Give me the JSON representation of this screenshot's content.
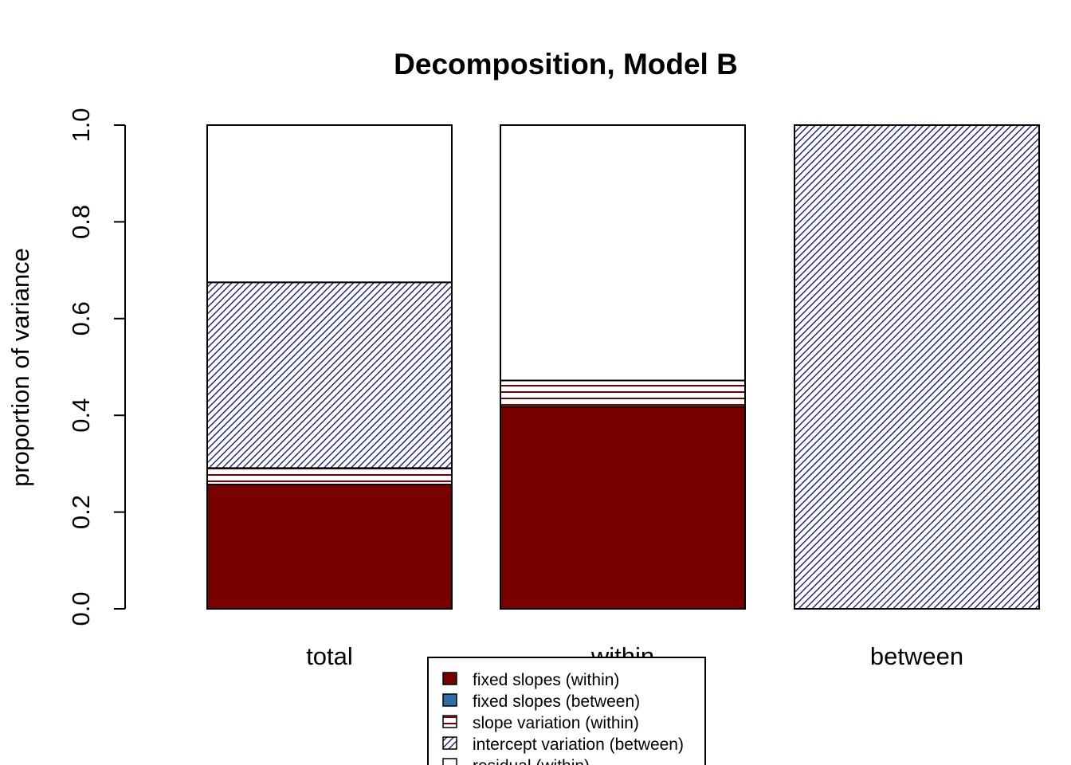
{
  "chart_data": {
    "type": "bar",
    "stacked": true,
    "title": "Decomposition, Model B",
    "ylabel": "proportion of variance",
    "xlabel": "",
    "ylim": [
      0,
      1
    ],
    "yticks": [
      "0.0",
      "0.2",
      "0.4",
      "0.6",
      "0.8",
      "1.0"
    ],
    "categories": [
      "total",
      "within",
      "between"
    ],
    "series": [
      {
        "name": "fixed slopes (within)",
        "values": [
          0.257,
          0.418,
          0.0
        ],
        "color": "#7a0000",
        "fill": "solid"
      },
      {
        "name": "fixed slopes (between)",
        "values": [
          0.0,
          0.0,
          0.0
        ],
        "color": "#2f6da6",
        "fill": "solid"
      },
      {
        "name": "slope variation (within)",
        "values": [
          0.034,
          0.054,
          0.0
        ],
        "color": "#7a0000",
        "fill": "horizontal-lines"
      },
      {
        "name": "intercept variation (between)",
        "values": [
          0.384,
          0.0,
          1.0
        ],
        "color": "#0a0a6e",
        "fill": "diagonal-lines"
      },
      {
        "name": "residual (within)",
        "values": [
          0.325,
          0.528,
          0.0
        ],
        "color": "#ffffff",
        "fill": "solid"
      }
    ],
    "legend": {
      "position": "bottom-center"
    }
  }
}
